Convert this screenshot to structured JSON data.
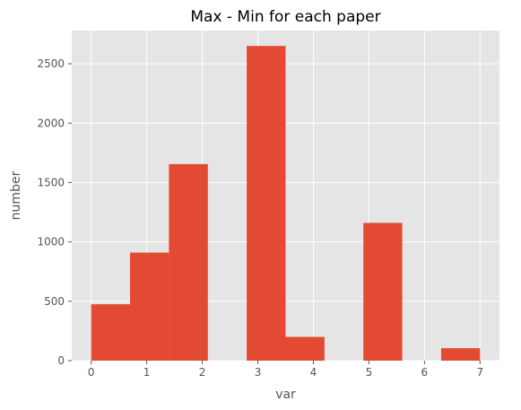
{
  "chart_data": {
    "type": "bar",
    "title": "Max - Min for each paper",
    "xlabel": "var",
    "ylabel": "number",
    "xlim": [
      -0.35,
      7.35
    ],
    "ylim": [
      0,
      2780
    ],
    "x_ticks": [
      0,
      1,
      2,
      3,
      4,
      5,
      6,
      7
    ],
    "y_ticks": [
      0,
      500,
      1000,
      1500,
      2000,
      2500
    ],
    "grid": true,
    "bins": [
      {
        "start": 0.0,
        "end": 0.7,
        "value": 475
      },
      {
        "start": 0.7,
        "end": 1.4,
        "value": 910
      },
      {
        "start": 1.4,
        "end": 2.1,
        "value": 1655
      },
      {
        "start": 2.1,
        "end": 2.8,
        "value": 0
      },
      {
        "start": 2.8,
        "end": 3.5,
        "value": 2650
      },
      {
        "start": 3.5,
        "end": 4.2,
        "value": 200
      },
      {
        "start": 4.2,
        "end": 4.9,
        "value": 0
      },
      {
        "start": 4.9,
        "end": 5.6,
        "value": 1160
      },
      {
        "start": 5.6,
        "end": 6.3,
        "value": 0
      },
      {
        "start": 6.3,
        "end": 7.0,
        "value": 105
      }
    ],
    "colors": {
      "bar": "#e24a33",
      "plot_background": "#e5e5e5",
      "grid": "#ffffff"
    }
  }
}
